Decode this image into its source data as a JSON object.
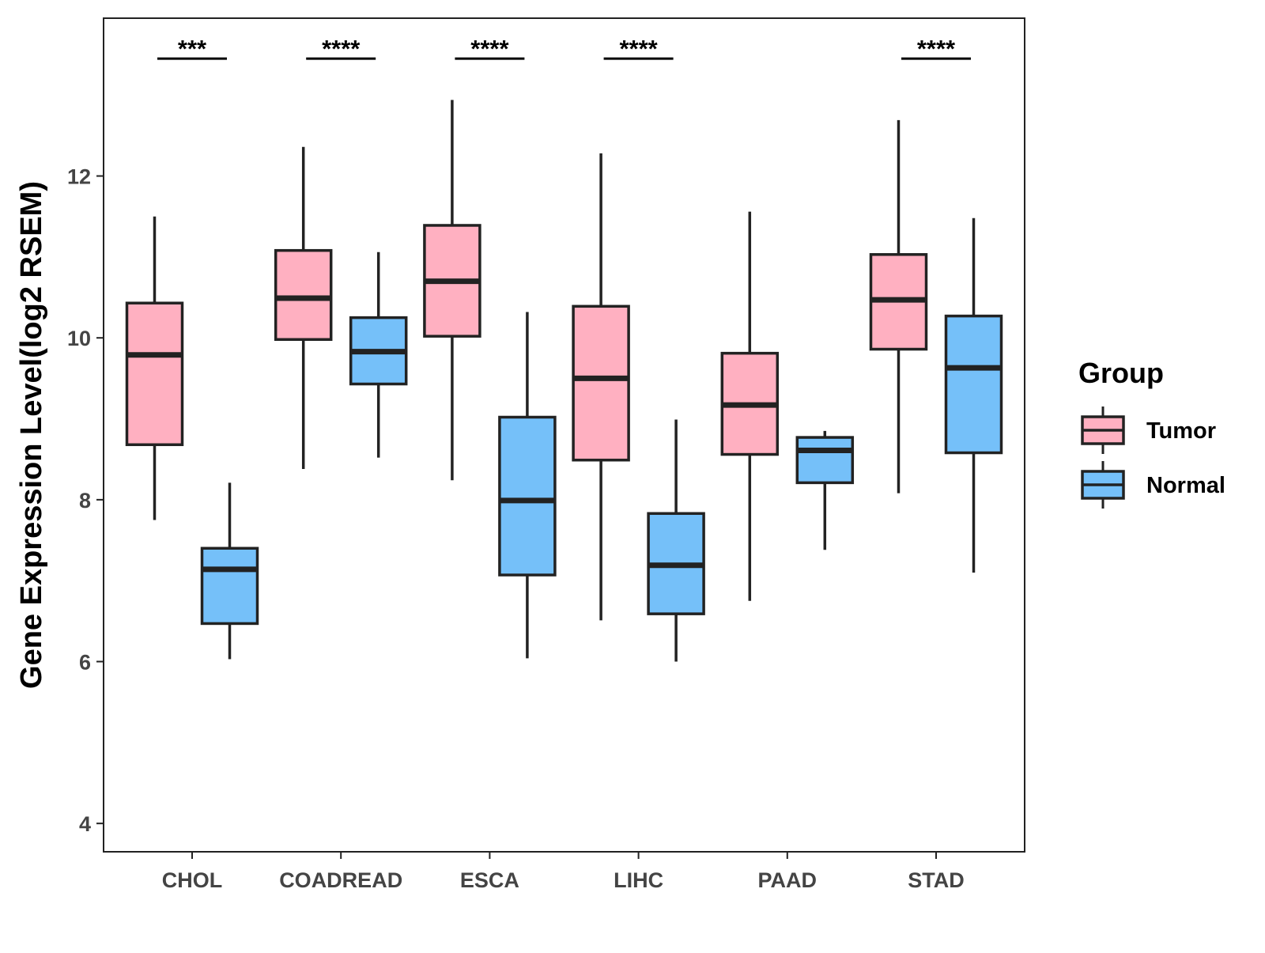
{
  "chart_data": {
    "type": "boxplot",
    "title": "",
    "xlabel": "",
    "ylabel": "Gene Expression Level(log2 RSEM)",
    "ylim": [
      3.65,
      13.95
    ],
    "yticks": [
      4,
      6,
      8,
      10,
      12
    ],
    "categories": [
      "CHOL",
      "COADREAD",
      "ESCA",
      "LIHC",
      "PAAD",
      "STAD"
    ],
    "legend": {
      "title": "Group",
      "position": "right",
      "entries": [
        {
          "name": "Tumor",
          "color": "#FFB0C1"
        },
        {
          "name": "Normal",
          "color": "#75C0F9"
        }
      ]
    },
    "series": [
      {
        "name": "Tumor",
        "color": "#FFB0C1",
        "boxes": [
          {
            "whisker_low": 7.75,
            "q1": 8.68,
            "median": 9.79,
            "q3": 10.43,
            "whisker_high": 11.5
          },
          {
            "whisker_low": 8.38,
            "q1": 9.98,
            "median": 10.49,
            "q3": 11.08,
            "whisker_high": 12.36
          },
          {
            "whisker_low": 8.24,
            "q1": 10.02,
            "median": 10.7,
            "q3": 11.39,
            "whisker_high": 12.94
          },
          {
            "whisker_low": 6.51,
            "q1": 8.49,
            "median": 9.5,
            "q3": 10.39,
            "whisker_high": 12.28
          },
          {
            "whisker_low": 6.75,
            "q1": 8.56,
            "median": 9.17,
            "q3": 9.81,
            "whisker_high": 11.56
          },
          {
            "whisker_low": 8.08,
            "q1": 9.86,
            "median": 10.47,
            "q3": 11.03,
            "whisker_high": 12.69
          }
        ]
      },
      {
        "name": "Normal",
        "color": "#75C0F9",
        "boxes": [
          {
            "whisker_low": 6.03,
            "q1": 6.47,
            "median": 7.14,
            "q3": 7.4,
            "whisker_high": 8.21
          },
          {
            "whisker_low": 8.52,
            "q1": 9.43,
            "median": 9.83,
            "q3": 10.25,
            "whisker_high": 11.06
          },
          {
            "whisker_low": 6.04,
            "q1": 7.07,
            "median": 7.99,
            "q3": 9.02,
            "whisker_high": 10.32
          },
          {
            "whisker_low": 6.0,
            "q1": 6.59,
            "median": 7.19,
            "q3": 7.83,
            "whisker_high": 8.99
          },
          {
            "whisker_low": 7.38,
            "q1": 8.21,
            "median": 8.61,
            "q3": 8.77,
            "whisker_high": 8.85
          },
          {
            "whisker_low": 7.1,
            "q1": 8.58,
            "median": 9.63,
            "q3": 10.27,
            "whisker_high": 11.48
          }
        ]
      }
    ],
    "significance": [
      {
        "category": "CHOL",
        "label": "***",
        "y": 13.45
      },
      {
        "category": "COADREAD",
        "label": "****",
        "y": 13.45
      },
      {
        "category": "ESCA",
        "label": "****",
        "y": 13.45
      },
      {
        "category": "LIHC",
        "label": "****",
        "y": 13.45
      },
      {
        "category": "STAD",
        "label": "****",
        "y": 13.45
      }
    ]
  }
}
